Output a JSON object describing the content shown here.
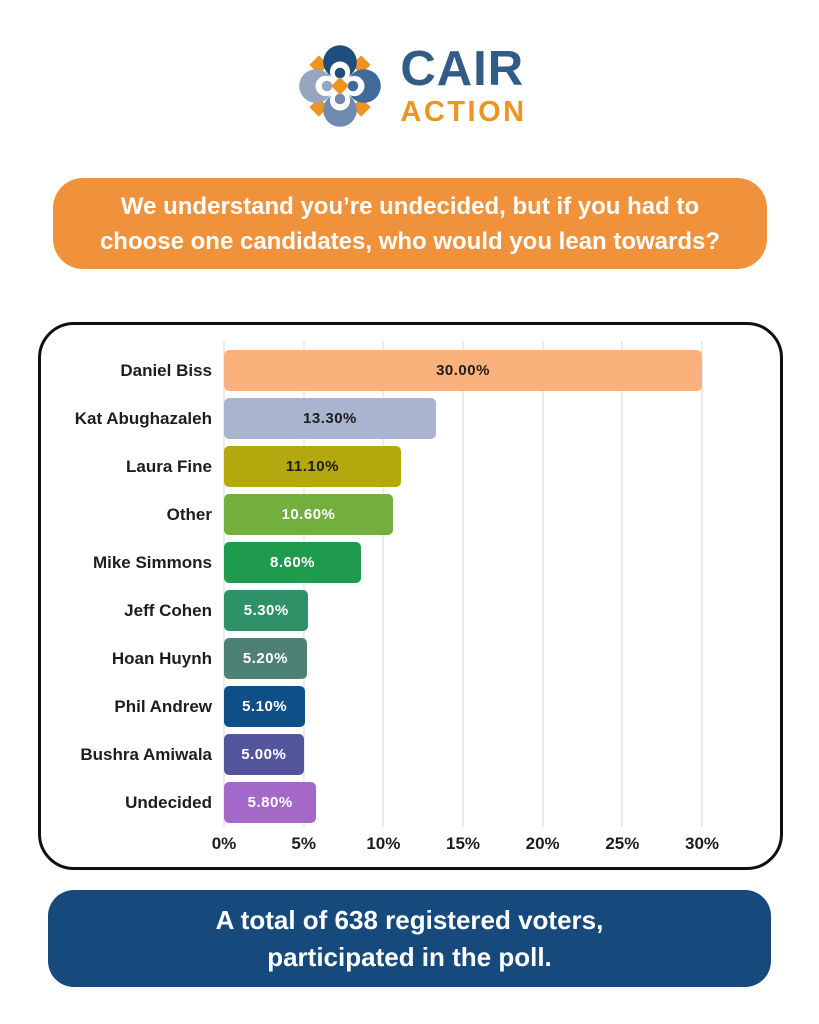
{
  "header": {
    "brand_name": "CAIR",
    "brand_subname": "ACTION",
    "brand_name_color": "#305C86",
    "brand_subname_color": "#EE9420",
    "logo_colors": {
      "circle_top": "#1E4E7B",
      "circle_right": "#3E6B9A",
      "circle_bottom": "#7089AF",
      "circle_left": "#98A5C0",
      "accent": "#EF9420"
    }
  },
  "question_banner": {
    "lines": [
      "We understand you’re undecided, but if you had to",
      "choose one candidates, who would you lean towards?"
    ],
    "bg_color": "#F0913C",
    "text_color": "#FFFFFF"
  },
  "chart_data": {
    "type": "bar",
    "orientation": "horizontal",
    "title": "",
    "xlabel": "",
    "ylabel": "",
    "grid": true,
    "xlim": [
      0,
      30
    ],
    "tick_values": [
      0,
      5,
      10,
      15,
      20,
      25,
      30
    ],
    "tick_labels": [
      "0%",
      "5%",
      "10%",
      "15%",
      "20%",
      "25%",
      "30%"
    ],
    "categories": [
      "Daniel Biss",
      "Kat Abughazaleh",
      "Laura Fine",
      "Other",
      "Mike Simmons",
      "Jeff Cohen",
      "Hoan Huynh",
      "Phil Andrew",
      "Bushra Amiwala",
      "Undecided"
    ],
    "values": [
      30.0,
      13.3,
      11.1,
      10.6,
      8.6,
      5.3,
      5.2,
      5.1,
      5.0,
      5.8
    ],
    "value_labels": [
      "30.00%",
      "13.30%",
      "11.10%",
      "10.60%",
      "8.60%",
      "5.30%",
      "5.20%",
      "5.10%",
      "5.00%",
      "5.80%"
    ],
    "bar_colors": [
      "#FBB17C",
      "#A9B4CF",
      "#B3A80D",
      "#72AF3C",
      "#1E9B4D",
      "#2F9168",
      "#4D8173",
      "#0F4F87",
      "#52549C",
      "#A469C8"
    ],
    "value_text_colors": [
      "#1D1D1B",
      "#1D1D1B",
      "#1D1D1B",
      "#FFFFFF",
      "#FFFFFF",
      "#FFFFFF",
      "#FFFFFF",
      "#FFFFFF",
      "#FFFFFF",
      "#FFFFFF"
    ]
  },
  "footer_banner": {
    "lines": [
      "A total of 638 registered voters,",
      "participated in the poll."
    ],
    "bg_color": "#164A7C",
    "text_color": "#FFFFFF"
  }
}
